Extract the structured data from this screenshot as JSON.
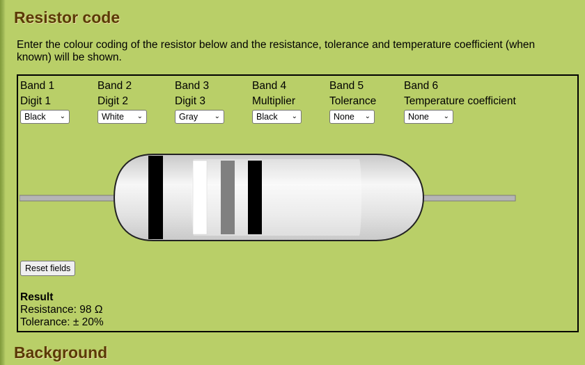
{
  "page": {
    "title": "Resistor code",
    "intro": "Enter the colour coding of the resistor below and the resistance, tolerance and temperature coefficient (when known) will be shown.",
    "next_heading": "Background"
  },
  "bands": [
    {
      "band": "Band 1",
      "role": "Digit 1",
      "selected": "Black"
    },
    {
      "band": "Band 2",
      "role": "Digit 2",
      "selected": "White"
    },
    {
      "band": "Band 3",
      "role": "Digit 3",
      "selected": "Gray"
    },
    {
      "band": "Band 4",
      "role": "Multiplier",
      "selected": "Black"
    },
    {
      "band": "Band 5",
      "role": "Tolerance",
      "selected": "None"
    },
    {
      "band": "Band 6",
      "role": "Temperature coefficient",
      "selected": "None"
    }
  ],
  "colors": {
    "body_light": "#f5f5f5",
    "body_mid": "#dcdcdc",
    "lead": "#b5b5b5",
    "stripe_black": "#000000",
    "stripe_white": "#ffffff",
    "stripe_gray": "#808080"
  },
  "reset_label": "Reset fields",
  "result": {
    "heading": "Result",
    "resistance_label": "Resistance:",
    "resistance_value": "98 Ω",
    "tolerance_label": "Tolerance:",
    "tolerance_value": "± 20%"
  }
}
